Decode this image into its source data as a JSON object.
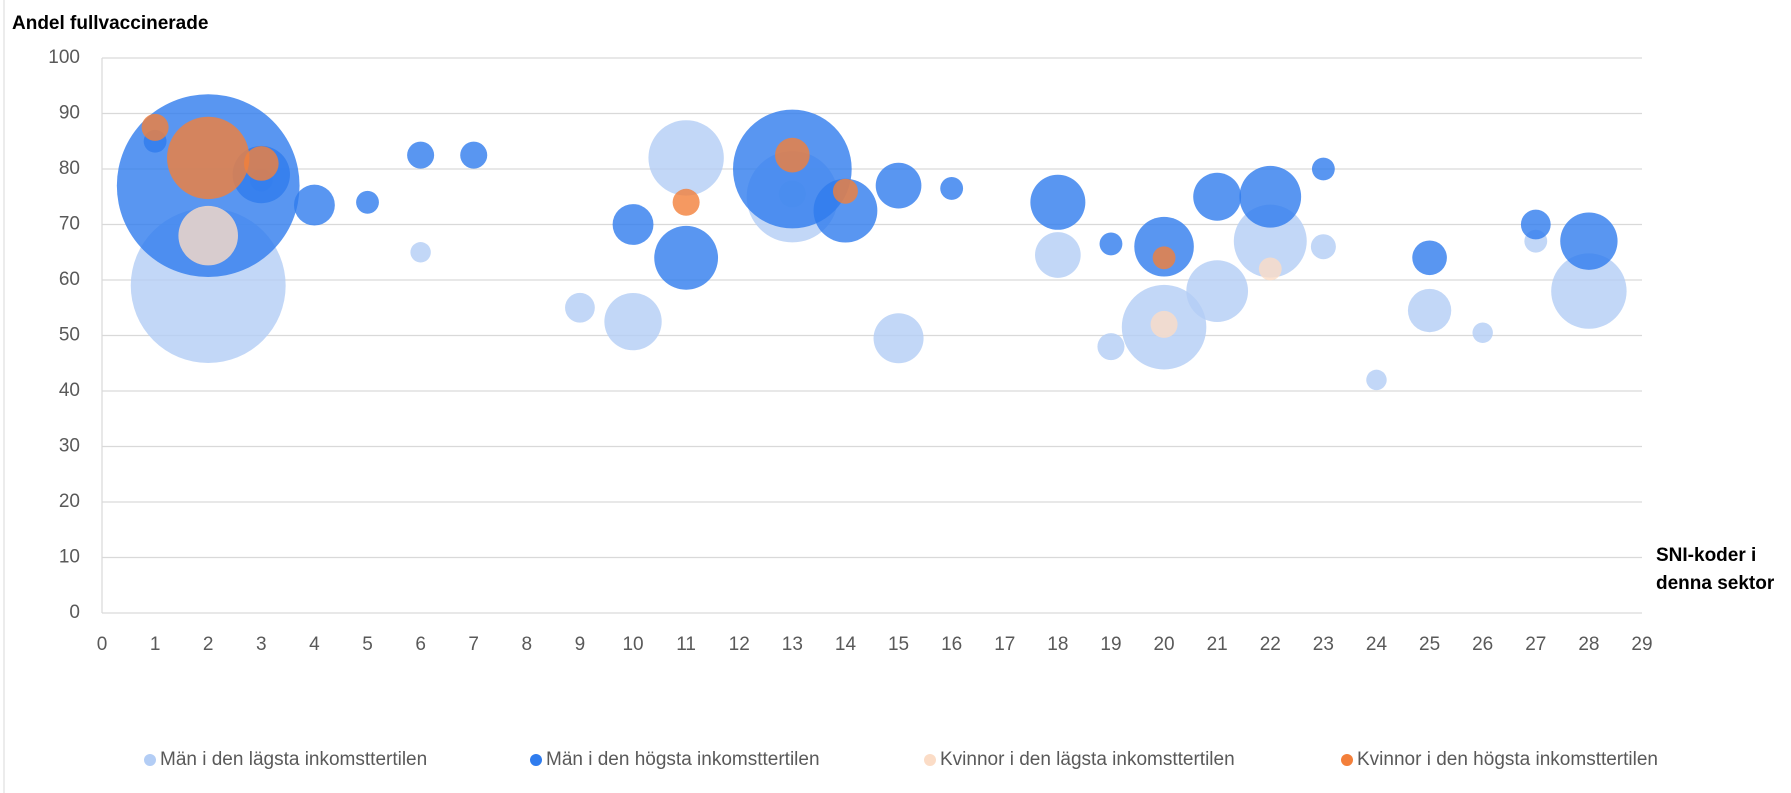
{
  "chart_data": {
    "type": "bubble",
    "y_label": "Andel fullvaccinerade",
    "x_label_lines": [
      "SNI-koder i",
      "denna sektor"
    ],
    "xlim": [
      0,
      29
    ],
    "xticks": [
      0,
      1,
      2,
      3,
      4,
      5,
      6,
      7,
      8,
      9,
      10,
      11,
      12,
      13,
      14,
      15,
      16,
      17,
      18,
      19,
      20,
      21,
      22,
      23,
      24,
      25,
      26,
      27,
      28,
      29
    ],
    "ylim": [
      0,
      100
    ],
    "yticks": [
      0,
      10,
      20,
      30,
      40,
      50,
      60,
      70,
      80,
      90,
      100
    ],
    "grid": true,
    "legend": "bottom",
    "series": [
      {
        "name": "Män i den lägsta inkomsttertilen",
        "color": "#b3cdf5",
        "x": [
          2,
          3,
          6,
          9,
          10,
          11,
          13,
          13,
          15,
          18,
          19,
          20,
          21,
          22,
          23,
          24,
          25,
          26,
          27,
          28
        ],
        "y": [
          59,
          78,
          65,
          55,
          52.5,
          82,
          75,
          75.5,
          49.5,
          64.5,
          48,
          51.5,
          58,
          67,
          66,
          42,
          54.5,
          50.5,
          67,
          58
        ],
        "size": [
          46,
          1,
          0.8,
          1.7,
          6.3,
          10.9,
          16,
          1.4,
          4.8,
          4,
          1.4,
          13.7,
          7.3,
          10.2,
          1.2,
          0.8,
          3.6,
          0.8,
          1,
          10.9
        ]
      },
      {
        "name": "Män i den högsta inkomsttertilen",
        "color": "#2f7cee",
        "x": [
          1,
          2,
          3,
          4,
          5,
          6,
          7,
          10,
          11,
          13,
          14,
          15,
          16,
          18,
          19,
          20,
          21,
          22,
          23,
          25,
          27,
          28
        ],
        "y": [
          85,
          77,
          79,
          73.5,
          74,
          82.5,
          82.5,
          70,
          64,
          80,
          72.5,
          77,
          76.5,
          74,
          66.5,
          66,
          75,
          75,
          80,
          64,
          70,
          67
        ],
        "size": [
          1,
          64,
          6.3,
          3.2,
          1,
          1.4,
          1.4,
          3.2,
          7.8,
          27,
          7.8,
          4,
          1,
          5.8,
          1,
          6.8,
          4.4,
          7.3,
          1,
          2.3,
          1.7,
          6.3
        ]
      },
      {
        "name": "Kvinnor i den lägsta inkomsttertilen",
        "color": "#fbdcc6",
        "x": [
          2,
          20,
          22
        ],
        "y": [
          68,
          52,
          62
        ],
        "size": [
          6.8,
          1.4,
          1
        ]
      },
      {
        "name": "Kvinnor i den högsta inkomsttertilen",
        "color": "#f37f3a",
        "x": [
          1,
          2,
          3,
          11,
          13,
          14,
          20
        ],
        "y": [
          87.5,
          82,
          81,
          74,
          82.5,
          76,
          64
        ],
        "size": [
          1.4,
          13,
          2.3,
          1.4,
          2.3,
          1.2,
          1
        ]
      }
    ]
  }
}
